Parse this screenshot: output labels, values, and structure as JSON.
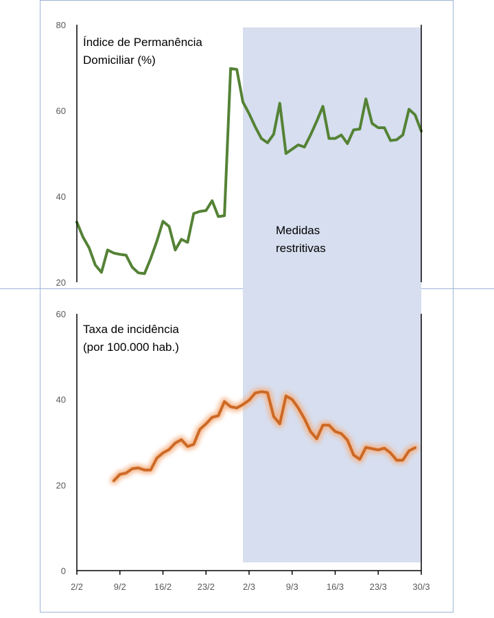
{
  "colors": {
    "restriction_band": "#d6deef",
    "frame": "#9db3d6",
    "top_series": "#548235",
    "bottom_series": "#c55a11",
    "bottom_glow": "#f4b183",
    "axis": "#000000",
    "tick_text": "#595959"
  },
  "annotation": {
    "line1": "Medidas",
    "line2": "restritivas",
    "shaded_from_day": 27
  },
  "x_axis": {
    "tick_days": [
      0,
      7,
      14,
      21,
      28,
      35,
      42,
      49,
      56
    ],
    "tick_labels": [
      "2/2",
      "9/2",
      "16/2",
      "23/2",
      "2/3",
      "9/3",
      "16/3",
      "23/3",
      "30/3"
    ],
    "xlim": [
      0,
      56
    ]
  },
  "chart_data": [
    {
      "type": "line",
      "title_line1": "Índice de Permanência",
      "title_line2": "Domiciliar (%)",
      "ylim": [
        20,
        80
      ],
      "yticks": [
        20,
        40,
        60,
        80
      ],
      "series": [
        {
          "points": [
            [
              0,
              34
            ],
            [
              1,
              30.5
            ],
            [
              2,
              28
            ],
            [
              3,
              24
            ],
            [
              4,
              22.3
            ],
            [
              5,
              27.5
            ],
            [
              6,
              26.8
            ],
            [
              7,
              26.5
            ],
            [
              8,
              26.3
            ],
            [
              9,
              23.5
            ],
            [
              10,
              22.2
            ],
            [
              11,
              22
            ],
            [
              12,
              25.5
            ],
            [
              13,
              29.5
            ],
            [
              14,
              34.2
            ],
            [
              15,
              33
            ],
            [
              16,
              27.5
            ],
            [
              17,
              30
            ],
            [
              18,
              29.3
            ],
            [
              19,
              36
            ],
            [
              20,
              36.5
            ],
            [
              21,
              36.7
            ],
            [
              22,
              39
            ],
            [
              23,
              35.3
            ],
            [
              24,
              35.5
            ],
            [
              25,
              69.8
            ],
            [
              26,
              69.6
            ],
            [
              27,
              62
            ],
            [
              28,
              59.3
            ],
            [
              29,
              56.2
            ],
            [
              30,
              53.5
            ],
            [
              31,
              52.5
            ],
            [
              32,
              54.5
            ],
            [
              33,
              61.7
            ],
            [
              34,
              50
            ],
            [
              35,
              51
            ],
            [
              36,
              52
            ],
            [
              37,
              51.5
            ],
            [
              38,
              54.3
            ],
            [
              39,
              57.5
            ],
            [
              40,
              61
            ],
            [
              41,
              53.5
            ],
            [
              42,
              53.5
            ],
            [
              43,
              54.3
            ],
            [
              44,
              52.3
            ],
            [
              45,
              55.5
            ],
            [
              46,
              55.7
            ],
            [
              47,
              62.7
            ],
            [
              48,
              57
            ],
            [
              49,
              56
            ],
            [
              50,
              56
            ],
            [
              51,
              53
            ],
            [
              52,
              53.2
            ],
            [
              53,
              54.3
            ],
            [
              54,
              60.3
            ],
            [
              55,
              59
            ],
            [
              56,
              55.2
            ]
          ]
        }
      ]
    },
    {
      "type": "line",
      "title_line1": "Taxa de incidência",
      "title_line2": "(por 100.000 hab.)",
      "ylim": [
        0,
        60
      ],
      "yticks": [
        0,
        20,
        40,
        60
      ],
      "series": [
        {
          "points": [
            [
              6,
              21
            ],
            [
              7,
              22.5
            ],
            [
              8,
              22.8
            ],
            [
              9,
              23.8
            ],
            [
              10,
              24
            ],
            [
              11,
              23.5
            ],
            [
              12,
              23.5
            ],
            [
              13,
              26.3
            ],
            [
              14,
              27.5
            ],
            [
              15,
              28.3
            ],
            [
              16,
              29.8
            ],
            [
              17,
              30.6
            ],
            [
              18,
              29
            ],
            [
              19,
              29.5
            ],
            [
              20,
              33
            ],
            [
              21,
              34.3
            ],
            [
              22,
              35.8
            ],
            [
              23,
              36.2
            ],
            [
              24,
              39.5
            ],
            [
              25,
              38.3
            ],
            [
              26,
              38
            ],
            [
              27,
              38.8
            ],
            [
              28,
              39.8
            ],
            [
              29,
              41.5
            ],
            [
              30,
              41.8
            ],
            [
              31,
              41.6
            ],
            [
              32,
              36
            ],
            [
              33,
              34.3
            ],
            [
              34,
              40.8
            ],
            [
              35,
              40
            ],
            [
              36,
              38
            ],
            [
              37,
              35.5
            ],
            [
              38,
              32.5
            ],
            [
              39,
              30.8
            ],
            [
              40,
              34
            ],
            [
              41,
              34
            ],
            [
              42,
              32.5
            ],
            [
              43,
              32
            ],
            [
              44,
              30.5
            ],
            [
              45,
              27
            ],
            [
              46,
              26
            ],
            [
              47,
              28.8
            ],
            [
              48,
              28.5
            ],
            [
              49,
              28.2
            ],
            [
              50,
              28.6
            ],
            [
              51,
              27.5
            ],
            [
              52,
              25.8
            ],
            [
              53,
              25.8
            ],
            [
              54,
              28
            ],
            [
              55,
              28.7
            ]
          ]
        }
      ]
    }
  ]
}
